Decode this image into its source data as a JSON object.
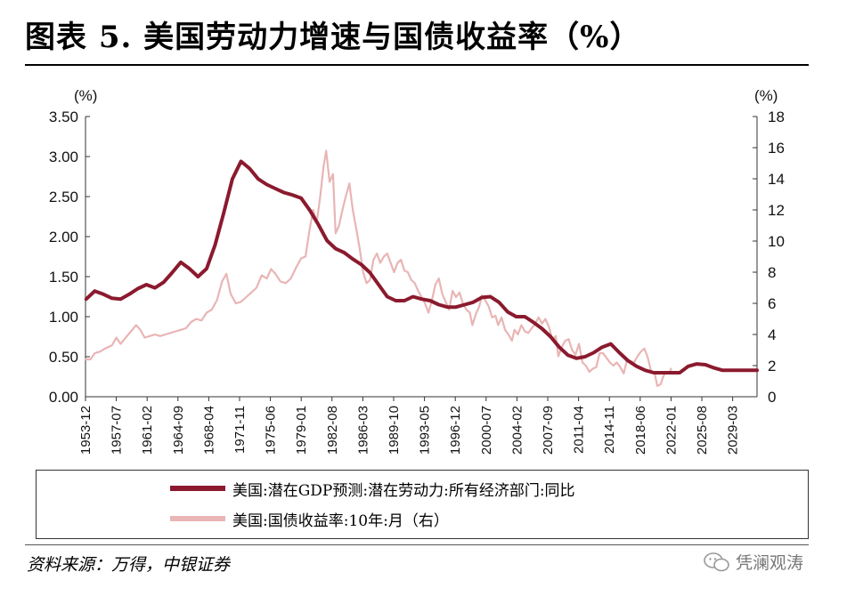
{
  "title": "图表 5. 美国劳动力增速与国债收益率（%）",
  "source": "资料来源：万得，中银证券",
  "watermark": "凭澜观涛",
  "chart_data": {
    "type": "line",
    "left_axis": {
      "unit_label": "(%)",
      "range": [
        0,
        3.5
      ],
      "ticks": [
        "0.00",
        "0.50",
        "1.00",
        "1.50",
        "2.00",
        "2.50",
        "3.00",
        "3.50"
      ]
    },
    "right_axis": {
      "unit_label": "(%)",
      "range": [
        0,
        18
      ],
      "ticks": [
        "0",
        "2",
        "4",
        "6",
        "8",
        "10",
        "12",
        "14",
        "16",
        "18"
      ]
    },
    "x_range": [
      1953.92,
      2032.0
    ],
    "x_ticks": [
      "1953-12",
      "1957-07",
      "1961-02",
      "1964-09",
      "1968-04",
      "1971-11",
      "1975-06",
      "1979-01",
      "1982-08",
      "1986-03",
      "1989-10",
      "1993-05",
      "1996-12",
      "2000-07",
      "2004-02",
      "2007-09",
      "2011-04",
      "2014-11",
      "2018-06",
      "2022-01",
      "2025-08",
      "2029-03"
    ],
    "series": [
      {
        "name": "美国:潜在GDP预测:潜在劳动力:所有经济部门:同比",
        "axis": "left",
        "color": "#8b1a2e",
        "points": [
          [
            1954.0,
            1.22
          ],
          [
            1955.0,
            1.32
          ],
          [
            1956.0,
            1.28
          ],
          [
            1957.0,
            1.23
          ],
          [
            1958.0,
            1.22
          ],
          [
            1959.0,
            1.28
          ],
          [
            1960.0,
            1.35
          ],
          [
            1961.0,
            1.4
          ],
          [
            1962.0,
            1.36
          ],
          [
            1963.0,
            1.43
          ],
          [
            1964.0,
            1.55
          ],
          [
            1965.0,
            1.68
          ],
          [
            1966.0,
            1.6
          ],
          [
            1967.0,
            1.5
          ],
          [
            1968.0,
            1.6
          ],
          [
            1969.0,
            1.9
          ],
          [
            1970.0,
            2.3
          ],
          [
            1971.0,
            2.72
          ],
          [
            1972.0,
            2.94
          ],
          [
            1973.0,
            2.85
          ],
          [
            1974.0,
            2.72
          ],
          [
            1975.0,
            2.65
          ],
          [
            1976.0,
            2.6
          ],
          [
            1977.0,
            2.55
          ],
          [
            1978.0,
            2.52
          ],
          [
            1979.0,
            2.48
          ],
          [
            1980.0,
            2.33
          ],
          [
            1981.0,
            2.15
          ],
          [
            1982.0,
            1.95
          ],
          [
            1983.0,
            1.85
          ],
          [
            1984.0,
            1.8
          ],
          [
            1985.0,
            1.72
          ],
          [
            1986.0,
            1.65
          ],
          [
            1987.0,
            1.55
          ],
          [
            1988.0,
            1.4
          ],
          [
            1989.0,
            1.25
          ],
          [
            1990.0,
            1.2
          ],
          [
            1991.0,
            1.2
          ],
          [
            1992.0,
            1.25
          ],
          [
            1993.0,
            1.22
          ],
          [
            1994.0,
            1.2
          ],
          [
            1995.0,
            1.15
          ],
          [
            1996.0,
            1.12
          ],
          [
            1997.0,
            1.12
          ],
          [
            1998.0,
            1.15
          ],
          [
            1999.0,
            1.18
          ],
          [
            2000.0,
            1.24
          ],
          [
            2001.0,
            1.25
          ],
          [
            2002.0,
            1.18
          ],
          [
            2003.0,
            1.06
          ],
          [
            2004.0,
            1.0
          ],
          [
            2005.0,
            1.0
          ],
          [
            2006.0,
            0.93
          ],
          [
            2007.0,
            0.85
          ],
          [
            2008.0,
            0.75
          ],
          [
            2009.0,
            0.62
          ],
          [
            2010.0,
            0.52
          ],
          [
            2011.0,
            0.48
          ],
          [
            2012.0,
            0.5
          ],
          [
            2013.0,
            0.55
          ],
          [
            2014.0,
            0.62
          ],
          [
            2015.0,
            0.66
          ],
          [
            2016.0,
            0.55
          ],
          [
            2017.0,
            0.45
          ],
          [
            2018.0,
            0.38
          ],
          [
            2019.0,
            0.33
          ],
          [
            2020.0,
            0.3
          ],
          [
            2021.0,
            0.3
          ],
          [
            2022.0,
            0.3
          ],
          [
            2023.0,
            0.3
          ],
          [
            2024.0,
            0.38
          ],
          [
            2025.0,
            0.41
          ],
          [
            2026.0,
            0.4
          ],
          [
            2027.0,
            0.36
          ],
          [
            2028.0,
            0.33
          ],
          [
            2029.0,
            0.33
          ],
          [
            2030.0,
            0.33
          ],
          [
            2031.0,
            0.33
          ],
          [
            2032.0,
            0.33
          ]
        ]
      },
      {
        "name": "美国:国债收益率:10年:月（右）",
        "axis": "right",
        "color": "#e9b5b5",
        "points": [
          [
            1953.9,
            2.4
          ],
          [
            1954.5,
            2.4
          ],
          [
            1955.0,
            2.8
          ],
          [
            1955.6,
            2.9
          ],
          [
            1956.2,
            3.1
          ],
          [
            1957.0,
            3.3
          ],
          [
            1957.5,
            3.8
          ],
          [
            1958.0,
            3.4
          ],
          [
            1958.6,
            3.8
          ],
          [
            1959.2,
            4.2
          ],
          [
            1959.8,
            4.6
          ],
          [
            1960.3,
            4.3
          ],
          [
            1960.8,
            3.8
          ],
          [
            1961.4,
            3.9
          ],
          [
            1962.0,
            4.0
          ],
          [
            1962.6,
            3.9
          ],
          [
            1963.2,
            4.0
          ],
          [
            1963.8,
            4.1
          ],
          [
            1964.4,
            4.2
          ],
          [
            1965.0,
            4.3
          ],
          [
            1965.6,
            4.4
          ],
          [
            1966.2,
            4.8
          ],
          [
            1966.8,
            5.0
          ],
          [
            1967.4,
            4.9
          ],
          [
            1968.0,
            5.4
          ],
          [
            1968.6,
            5.6
          ],
          [
            1969.2,
            6.2
          ],
          [
            1969.8,
            7.4
          ],
          [
            1970.3,
            7.9
          ],
          [
            1970.8,
            6.6
          ],
          [
            1971.4,
            6.0
          ],
          [
            1972.0,
            6.1
          ],
          [
            1972.6,
            6.4
          ],
          [
            1973.2,
            6.7
          ],
          [
            1973.8,
            7.0
          ],
          [
            1974.4,
            7.8
          ],
          [
            1975.0,
            7.6
          ],
          [
            1975.5,
            8.2
          ],
          [
            1976.0,
            7.9
          ],
          [
            1976.6,
            7.4
          ],
          [
            1977.2,
            7.3
          ],
          [
            1977.8,
            7.6
          ],
          [
            1978.4,
            8.3
          ],
          [
            1979.0,
            8.9
          ],
          [
            1979.5,
            9.0
          ],
          [
            1980.0,
            10.8
          ],
          [
            1980.4,
            12.0
          ],
          [
            1980.8,
            11.2
          ],
          [
            1981.2,
            12.8
          ],
          [
            1981.6,
            14.8
          ],
          [
            1981.9,
            15.8
          ],
          [
            1982.3,
            13.8
          ],
          [
            1982.7,
            14.3
          ],
          [
            1983.0,
            10.5
          ],
          [
            1983.4,
            11.0
          ],
          [
            1983.8,
            12.0
          ],
          [
            1984.2,
            12.9
          ],
          [
            1984.6,
            13.7
          ],
          [
            1985.0,
            12.0
          ],
          [
            1985.4,
            10.8
          ],
          [
            1985.8,
            9.5
          ],
          [
            1986.2,
            8.0
          ],
          [
            1986.6,
            7.3
          ],
          [
            1987.0,
            7.5
          ],
          [
            1987.4,
            8.8
          ],
          [
            1987.8,
            9.2
          ],
          [
            1988.2,
            8.6
          ],
          [
            1988.6,
            9.0
          ],
          [
            1989.0,
            9.2
          ],
          [
            1989.4,
            8.6
          ],
          [
            1989.8,
            8.0
          ],
          [
            1990.2,
            8.6
          ],
          [
            1990.6,
            8.8
          ],
          [
            1991.0,
            8.1
          ],
          [
            1991.4,
            8.0
          ],
          [
            1991.8,
            7.5
          ],
          [
            1992.2,
            7.3
          ],
          [
            1992.6,
            6.8
          ],
          [
            1993.0,
            6.4
          ],
          [
            1993.4,
            6.0
          ],
          [
            1993.8,
            5.4
          ],
          [
            1994.2,
            6.2
          ],
          [
            1994.6,
            7.2
          ],
          [
            1995.0,
            7.6
          ],
          [
            1995.4,
            6.6
          ],
          [
            1995.8,
            6.1
          ],
          [
            1996.2,
            5.6
          ],
          [
            1996.6,
            6.8
          ],
          [
            1997.0,
            6.4
          ],
          [
            1997.4,
            6.7
          ],
          [
            1997.8,
            6.0
          ],
          [
            1998.2,
            5.6
          ],
          [
            1998.6,
            5.4
          ],
          [
            1998.9,
            4.6
          ],
          [
            1999.3,
            5.3
          ],
          [
            1999.7,
            5.8
          ],
          [
            2000.0,
            6.5
          ],
          [
            2000.4,
            6.2
          ],
          [
            2000.8,
            5.8
          ],
          [
            2001.2,
            5.1
          ],
          [
            2001.6,
            5.2
          ],
          [
            2001.9,
            4.6
          ],
          [
            2002.3,
            5.1
          ],
          [
            2002.7,
            4.3
          ],
          [
            2003.1,
            4.0
          ],
          [
            2003.5,
            3.6
          ],
          [
            2003.8,
            4.3
          ],
          [
            2004.2,
            4.0
          ],
          [
            2004.6,
            4.6
          ],
          [
            2005.0,
            4.2
          ],
          [
            2005.4,
            4.1
          ],
          [
            2005.8,
            4.4
          ],
          [
            2006.2,
            4.7
          ],
          [
            2006.6,
            5.1
          ],
          [
            2007.0,
            4.7
          ],
          [
            2007.4,
            5.0
          ],
          [
            2007.8,
            4.5
          ],
          [
            2008.2,
            3.7
          ],
          [
            2008.6,
            3.9
          ],
          [
            2008.9,
            2.6
          ],
          [
            2009.3,
            3.2
          ],
          [
            2009.7,
            3.6
          ],
          [
            2010.1,
            3.7
          ],
          [
            2010.5,
            3.0
          ],
          [
            2010.9,
            2.7
          ],
          [
            2011.3,
            3.4
          ],
          [
            2011.7,
            2.2
          ],
          [
            2012.1,
            2.0
          ],
          [
            2012.5,
            1.6
          ],
          [
            2012.9,
            1.8
          ],
          [
            2013.3,
            1.9
          ],
          [
            2013.7,
            2.8
          ],
          [
            2014.1,
            2.8
          ],
          [
            2014.5,
            2.5
          ],
          [
            2014.9,
            2.2
          ],
          [
            2015.3,
            2.0
          ],
          [
            2015.7,
            2.2
          ],
          [
            2016.1,
            1.9
          ],
          [
            2016.5,
            1.5
          ],
          [
            2016.9,
            2.4
          ],
          [
            2017.3,
            2.3
          ],
          [
            2017.7,
            2.2
          ],
          [
            2018.1,
            2.6
          ],
          [
            2018.5,
            2.9
          ],
          [
            2018.9,
            3.1
          ],
          [
            2019.3,
            2.5
          ],
          [
            2019.7,
            1.6
          ],
          [
            2020.1,
            1.5
          ],
          [
            2020.4,
            0.7
          ],
          [
            2020.8,
            0.8
          ],
          [
            2021.1,
            1.3
          ],
          [
            2021.4,
            1.6
          ],
          [
            2021.8,
            1.5
          ],
          [
            2022.0,
            1.8
          ]
        ]
      }
    ],
    "legend": [
      "美国:潜在GDP预测:潜在劳动力:所有经济部门:同比",
      "美国:国债收益率:10年:月（右）"
    ]
  }
}
